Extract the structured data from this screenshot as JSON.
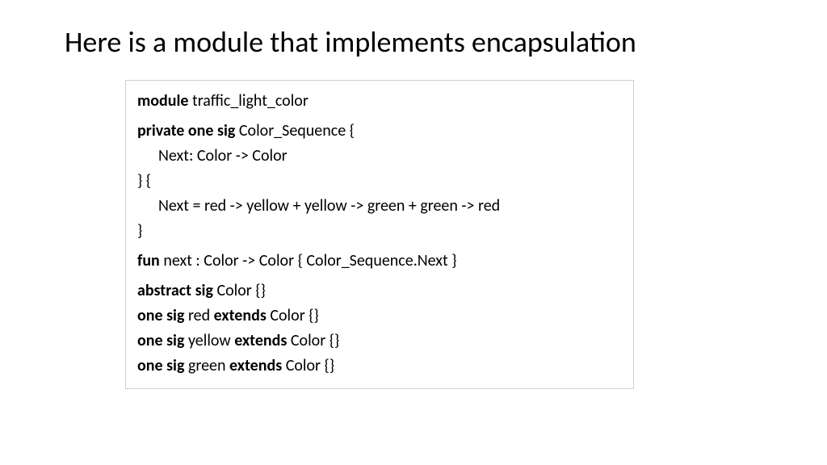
{
  "title": "Here is a module that implements encapsulation",
  "code": {
    "line1_kw": "module",
    "line1_rest": " traffic_light_color",
    "line2_kw": "private one sig",
    "line2_rest": " Color_Sequence {",
    "line3": "Next: Color -> Color",
    "line4": "} {",
    "line5": "Next = red -> yellow + yellow -> green + green -> red",
    "line6": "}",
    "line7_kw": "fun",
    "line7_rest": " next : Color -> Color { Color_Sequence.Next }",
    "line8_kw": "abstract sig",
    "line8_rest": " Color {}",
    "line9_kw1": "one sig",
    "line9_mid": " red ",
    "line9_kw2": "extends",
    "line9_rest": " Color {}",
    "line10_kw1": "one sig",
    "line10_mid": " yellow ",
    "line10_kw2": "extends",
    "line10_rest": " Color {}",
    "line11_kw1": "one sig",
    "line11_mid": " green ",
    "line11_kw2": "extends",
    "line11_rest": " Color {}"
  },
  "style": {
    "background": "#ffffff",
    "text_color": "#000000",
    "border_color": "#d0d0d0",
    "title_fontsize": 36,
    "code_fontsize": 20,
    "font_family": "Calibri"
  }
}
